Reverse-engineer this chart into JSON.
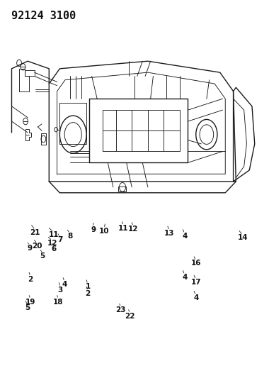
{
  "title_code": "92124 3100",
  "title_fontsize": 11,
  "background_color": "#ffffff",
  "line_color": "#1a1a1a",
  "label_color": "#111111",
  "figsize": [
    3.8,
    5.33
  ],
  "dpi": 100
}
